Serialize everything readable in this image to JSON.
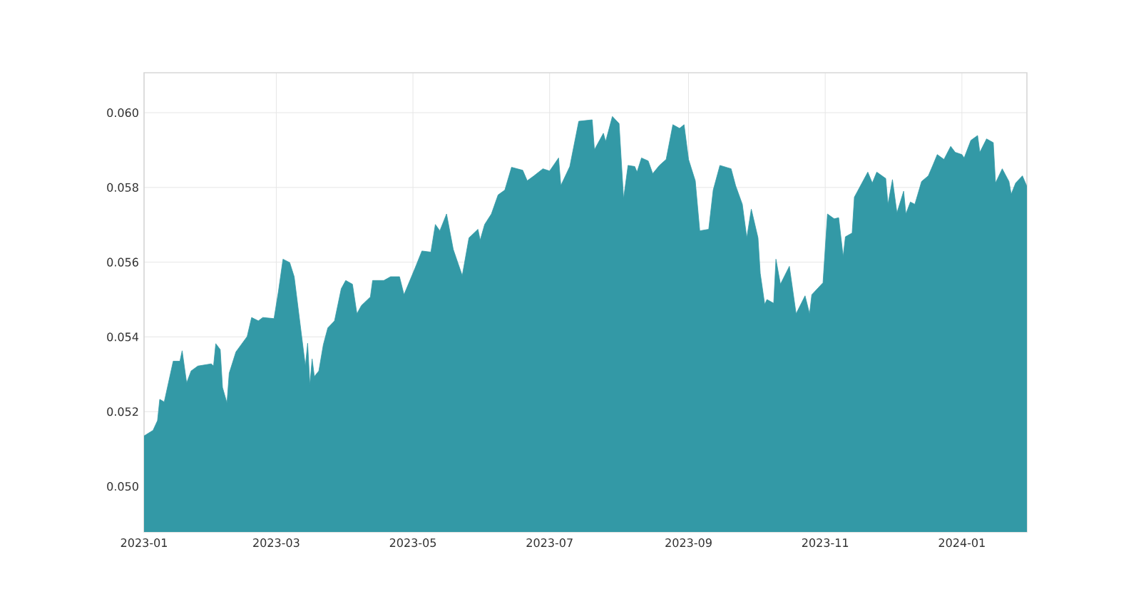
{
  "chart_data": {
    "type": "area",
    "color": "#3399a6",
    "grid": true,
    "xlim": [
      "2023-01-01",
      "2024-01-30"
    ],
    "ylim": [
      0.04878,
      0.06107
    ],
    "xticks": [
      "2023-01",
      "2023-03",
      "2023-05",
      "2023-07",
      "2023-09",
      "2023-11",
      "2024-01"
    ],
    "yticks": [
      {
        "value": 0.05,
        "label": "0.050"
      },
      {
        "value": 0.052,
        "label": "0.052"
      },
      {
        "value": 0.054,
        "label": "0.054"
      },
      {
        "value": 0.056,
        "label": "0.056"
      },
      {
        "value": 0.058,
        "label": "0.058"
      },
      {
        "value": 0.06,
        "label": "0.060"
      }
    ],
    "x": [
      "2023-01-01",
      "2023-01-05",
      "2023-01-07",
      "2023-01-08",
      "2023-01-10",
      "2023-01-14",
      "2023-01-17",
      "2023-01-18",
      "2023-01-20",
      "2023-01-22",
      "2023-01-25",
      "2023-01-31",
      "2023-02-01",
      "2023-02-02",
      "2023-02-04",
      "2023-02-05",
      "2023-02-07",
      "2023-02-08",
      "2023-02-11",
      "2023-02-16",
      "2023-02-18",
      "2023-02-21",
      "2023-02-23",
      "2023-02-28",
      "2023-03-02",
      "2023-03-04",
      "2023-03-07",
      "2023-03-09",
      "2023-03-14",
      "2023-03-15",
      "2023-03-16",
      "2023-03-17",
      "2023-03-18",
      "2023-03-20",
      "2023-03-22",
      "2023-03-24",
      "2023-03-27",
      "2023-03-30",
      "2023-04-01",
      "2023-04-04",
      "2023-04-06",
      "2023-04-08",
      "2023-04-12",
      "2023-04-13",
      "2023-04-18",
      "2023-04-21",
      "2023-04-25",
      "2023-04-27",
      "2023-05-02",
      "2023-05-05",
      "2023-05-09",
      "2023-05-11",
      "2023-05-13",
      "2023-05-16",
      "2023-05-19",
      "2023-05-23",
      "2023-05-26",
      "2023-05-30",
      "2023-05-31",
      "2023-06-02",
      "2023-06-05",
      "2023-06-08",
      "2023-06-11",
      "2023-06-14",
      "2023-06-19",
      "2023-06-21",
      "2023-06-24",
      "2023-06-28",
      "2023-07-01",
      "2023-07-05",
      "2023-07-06",
      "2023-07-10",
      "2023-07-14",
      "2023-07-20",
      "2023-07-21",
      "2023-07-25",
      "2023-07-26",
      "2023-07-29",
      "2023-08-01",
      "2023-08-03",
      "2023-08-05",
      "2023-08-08",
      "2023-08-09",
      "2023-08-11",
      "2023-08-14",
      "2023-08-16",
      "2023-08-19",
      "2023-08-22",
      "2023-08-25",
      "2023-08-28",
      "2023-08-30",
      "2023-09-01",
      "2023-09-04",
      "2023-09-06",
      "2023-09-10",
      "2023-09-12",
      "2023-09-15",
      "2023-09-20",
      "2023-09-22",
      "2023-09-25",
      "2023-09-27",
      "2023-09-29",
      "2023-10-02",
      "2023-10-03",
      "2023-10-05",
      "2023-10-06",
      "2023-10-09",
      "2023-10-10",
      "2023-10-12",
      "2023-10-16",
      "2023-10-19",
      "2023-10-23",
      "2023-10-25",
      "2023-10-26",
      "2023-10-31",
      "2023-11-02",
      "2023-11-05",
      "2023-11-07",
      "2023-11-09",
      "2023-11-10",
      "2023-11-13",
      "2023-11-14",
      "2023-11-20",
      "2023-11-22",
      "2023-11-24",
      "2023-11-28",
      "2023-11-29",
      "2023-12-01",
      "2023-12-03",
      "2023-12-06",
      "2023-12-07",
      "2023-12-09",
      "2023-12-11",
      "2023-12-14",
      "2023-12-17",
      "2023-12-19",
      "2023-12-21",
      "2023-12-24",
      "2023-12-27",
      "2023-12-29",
      "2024-01-01",
      "2024-01-02",
      "2024-01-05",
      "2024-01-08",
      "2024-01-09",
      "2024-01-12",
      "2024-01-15",
      "2024-01-16",
      "2024-01-19",
      "2024-01-22",
      "2024-01-23",
      "2024-01-25",
      "2024-01-28",
      "2024-01-30"
    ],
    "values": [
      0.05135,
      0.0515,
      0.05176,
      0.05233,
      0.05226,
      0.05335,
      0.05335,
      0.05363,
      0.05277,
      0.05309,
      0.05322,
      0.05328,
      0.05322,
      0.05382,
      0.05366,
      0.05265,
      0.05223,
      0.05303,
      0.0536,
      0.05401,
      0.05452,
      0.05443,
      0.05452,
      0.05449,
      0.05523,
      0.05608,
      0.05599,
      0.05561,
      0.05322,
      0.05383,
      0.05271,
      0.05341,
      0.05294,
      0.05309,
      0.05379,
      0.05424,
      0.05443,
      0.05529,
      0.05551,
      0.05541,
      0.05462,
      0.05484,
      0.05507,
      0.05551,
      0.05551,
      0.05561,
      0.05561,
      0.05513,
      0.05585,
      0.0563,
      0.05627,
      0.05701,
      0.05684,
      0.05729,
      0.05634,
      0.05564,
      0.05665,
      0.05688,
      0.05659,
      0.05701,
      0.05729,
      0.0578,
      0.05793,
      0.05854,
      0.05846,
      0.05818,
      0.05831,
      0.0585,
      0.05844,
      0.05879,
      0.05805,
      0.05856,
      0.05977,
      0.05981,
      0.05901,
      0.05945,
      0.05923,
      0.0599,
      0.05971,
      0.0577,
      0.05859,
      0.05856,
      0.05841,
      0.05879,
      0.05871,
      0.05837,
      0.05859,
      0.05875,
      0.05968,
      0.05958,
      0.05968,
      0.05875,
      0.05818,
      0.05684,
      0.05688,
      0.05793,
      0.05859,
      0.0585,
      0.05805,
      0.05755,
      0.05665,
      0.05742,
      0.05665,
      0.0557,
      0.05487,
      0.055,
      0.0549,
      0.05608,
      0.05541,
      0.05589,
      0.05462,
      0.0551,
      0.05462,
      0.05513,
      0.05545,
      0.05729,
      0.05716,
      0.05719,
      0.05615,
      0.05668,
      0.05678,
      0.05774,
      0.05841,
      0.05812,
      0.05841,
      0.05824,
      0.05755,
      0.05821,
      0.05732,
      0.0579,
      0.05729,
      0.05761,
      0.05755,
      0.05816,
      0.05831,
      0.05859,
      0.05888,
      0.05875,
      0.0591,
      0.05894,
      0.05888,
      0.05879,
      0.05926,
      0.05939,
      0.05894,
      0.0593,
      0.0592,
      0.05812,
      0.0585,
      0.05816,
      0.05782,
      0.05812,
      0.05831,
      0.05803
    ]
  }
}
